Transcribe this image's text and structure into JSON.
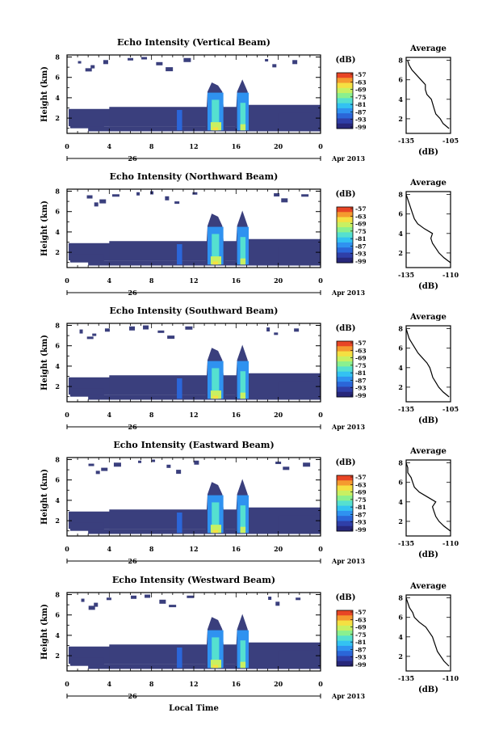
{
  "colors": {
    "background": "#3a3f7d",
    "colormap": [
      "#27277a",
      "#2f3fa8",
      "#2b66d8",
      "#2f92f0",
      "#33c2f2",
      "#55e0d0",
      "#8af08f",
      "#c8f062",
      "#f5e042",
      "#f59a2f",
      "#e84525"
    ]
  },
  "shared": {
    "ylabel": "Height (km)",
    "y_ticks": [
      "2",
      "4",
      "6",
      "8"
    ],
    "x_ticks": [
      "0",
      "4",
      "8",
      "12",
      "16",
      "20",
      "0"
    ],
    "date_day": "26",
    "date_suffix": "Apr 2013",
    "xlabel": "Local Time",
    "cb_unit": "(dB)",
    "cb_ticks": [
      "-57",
      "-63",
      "-69",
      "-75",
      "-81",
      "-87",
      "-93",
      "-99"
    ],
    "avg_title": "Average",
    "avg_xlabel": "(dB)",
    "avg_yticks": [
      "2",
      "4",
      "6",
      "8"
    ]
  },
  "chart_data": [
    {
      "type": "heatmap",
      "title": "Echo Intensity (Vertical Beam)",
      "xlim": [
        0,
        24
      ],
      "ylim": [
        0.5,
        8.2
      ],
      "colorbar_range_dB": [
        -99,
        -57
      ],
      "avg_xticks": [
        "-135",
        "-105"
      ],
      "avg_xlim": [
        -135,
        -105
      ],
      "average_profile": {
        "height_km": [
          1.0,
          1.5,
          2.0,
          2.5,
          3.0,
          3.5,
          4.0,
          4.5,
          5.0,
          5.5,
          6.0,
          6.5,
          7.0,
          7.5,
          8.0
        ],
        "dB": [
          -106,
          -110,
          -112,
          -115,
          -116,
          -117,
          -118,
          -121,
          -122,
          -122,
          -125,
          -128,
          -131,
          -133,
          -134
        ]
      }
    },
    {
      "type": "heatmap",
      "title": "Echo Intensity (Northward Beam)",
      "xlim": [
        0,
        24
      ],
      "ylim": [
        0.5,
        8.2
      ],
      "colorbar_range_dB": [
        -99,
        -57
      ],
      "avg_xticks": [
        "-135",
        "-110"
      ],
      "avg_xlim": [
        -135,
        -108
      ],
      "average_profile": {
        "height_km": [
          1.0,
          1.5,
          2.0,
          2.5,
          3.0,
          3.5,
          4.0,
          4.5,
          5.0,
          5.5,
          6.0,
          6.5,
          7.0,
          7.5,
          8.0
        ],
        "dB": [
          -108,
          -112,
          -115,
          -117,
          -119,
          -120,
          -119,
          -124,
          -128,
          -130,
          -131,
          -132,
          -133,
          -134,
          -135
        ]
      }
    },
    {
      "type": "heatmap",
      "title": "Echo Intensity (Southward Beam)",
      "xlim": [
        0,
        24
      ],
      "ylim": [
        0.5,
        8.2
      ],
      "colorbar_range_dB": [
        -99,
        -57
      ],
      "avg_xticks": [
        "-135",
        "-105"
      ],
      "avg_xlim": [
        -135,
        -105
      ],
      "average_profile": {
        "height_km": [
          1.0,
          1.5,
          2.0,
          2.5,
          3.0,
          3.5,
          4.0,
          4.5,
          5.0,
          5.5,
          6.0,
          6.5,
          7.0,
          7.5,
          8.0
        ],
        "dB": [
          -106,
          -110,
          -113,
          -115,
          -117,
          -118,
          -119,
          -121,
          -124,
          -127,
          -129,
          -131,
          -133,
          -134,
          -135
        ]
      }
    },
    {
      "type": "heatmap",
      "title": "Echo Intensity (Eastward Beam)",
      "xlim": [
        0,
        24
      ],
      "ylim": [
        0.5,
        8.2
      ],
      "colorbar_range_dB": [
        -99,
        -57
      ],
      "avg_xticks": [
        "-135",
        "-110"
      ],
      "avg_xlim": [
        -135,
        -108
      ],
      "average_profile": {
        "height_km": [
          1.0,
          1.5,
          2.0,
          2.5,
          3.0,
          3.5,
          4.0,
          4.5,
          5.0,
          5.5,
          6.0,
          6.5,
          7.0,
          7.5,
          8.0
        ],
        "dB": [
          -108,
          -112,
          -115,
          -117,
          -118,
          -119,
          -117,
          -122,
          -127,
          -130,
          -131,
          -132,
          -134,
          -134,
          -135
        ]
      }
    },
    {
      "type": "heatmap",
      "title": "Echo Intensity (Westward Beam)",
      "xlim": [
        0,
        24
      ],
      "ylim": [
        0.5,
        8.2
      ],
      "colorbar_range_dB": [
        -99,
        -57
      ],
      "avg_xticks": [
        "-135",
        "-110"
      ],
      "avg_xlim": [
        -135,
        -108
      ],
      "average_profile": {
        "height_km": [
          1.0,
          1.5,
          2.0,
          2.5,
          3.0,
          3.5,
          4.0,
          4.5,
          5.0,
          5.5,
          6.0,
          6.5,
          7.0,
          7.5,
          8.0
        ],
        "dB": [
          -109,
          -112,
          -114,
          -116,
          -117,
          -118,
          -119,
          -121,
          -123,
          -127,
          -130,
          -131,
          -133,
          -134,
          -135
        ]
      }
    }
  ]
}
